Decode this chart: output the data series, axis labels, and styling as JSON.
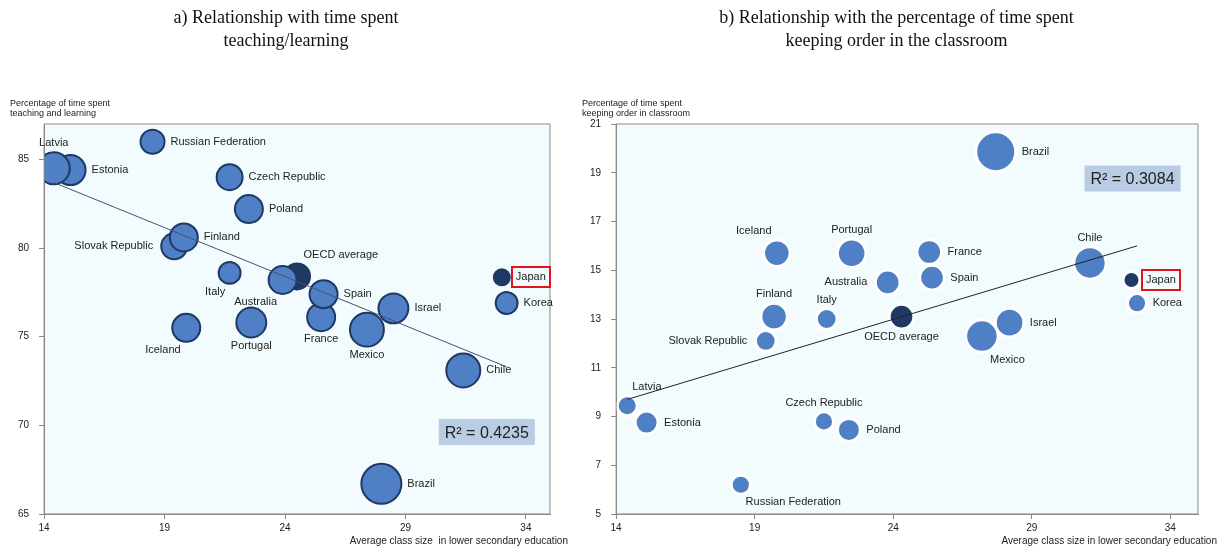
{
  "chart_data": [
    {
      "type": "bubble",
      "title": "a) Relationship with time spent teaching/learning",
      "xlabel": "Average class size  in lower secondary education",
      "ylabel": "Percentage of time spent\nteaching and learning",
      "xlim": [
        14,
        35
      ],
      "ylim": [
        65,
        87
      ],
      "xticks": [
        14,
        19,
        24,
        29,
        34
      ],
      "yticks": [
        65,
        70,
        75,
        80,
        85
      ],
      "grid": false,
      "annotations": [
        "R² = 0.4235"
      ],
      "series": [
        {
          "name": "Latvia",
          "color": "#4f7fc4",
          "x": [
            14.4
          ],
          "values": [
            84.5
          ],
          "sizes": [
            0.64
          ]
        },
        {
          "name": "Estonia",
          "color": "#4f7fc4",
          "x": [
            15.1
          ],
          "values": [
            84.4
          ],
          "sizes": [
            0.56
          ]
        },
        {
          "name": "Russian Federation",
          "color": "#4f7fc4",
          "x": [
            18.5
          ],
          "values": [
            86.0
          ],
          "sizes": [
            0.36
          ]
        },
        {
          "name": "Czech Republic",
          "color": "#4f7fc4",
          "x": [
            21.7
          ],
          "values": [
            84.0
          ],
          "sizes": [
            0.42
          ]
        },
        {
          "name": "Poland",
          "color": "#4f7fc4",
          "x": [
            22.5
          ],
          "values": [
            82.2
          ],
          "sizes": [
            0.49
          ]
        },
        {
          "name": "Finland",
          "color": "#4f7fc4",
          "x": [
            19.8
          ],
          "values": [
            80.6
          ],
          "sizes": [
            0.49
          ]
        },
        {
          "name": "Slovak Republic",
          "color": "#4f7fc4",
          "x": [
            19.4
          ],
          "values": [
            80.1
          ],
          "sizes": [
            0.42
          ]
        },
        {
          "name": "Italy",
          "color": "#4f7fc4",
          "x": [
            21.7
          ],
          "values": [
            78.6
          ],
          "sizes": [
            0.3
          ]
        },
        {
          "name": "Australia",
          "color": "#4f7fc4",
          "x": [
            23.9
          ],
          "values": [
            78.2
          ],
          "sizes": [
            0.49
          ]
        },
        {
          "name": "Iceland",
          "color": "#4f7fc4",
          "x": [
            19.9
          ],
          "values": [
            75.5
          ],
          "sizes": [
            0.49
          ]
        },
        {
          "name": "Portugal",
          "color": "#4f7fc4",
          "x": [
            22.6
          ],
          "values": [
            75.8
          ],
          "sizes": [
            0.56
          ]
        },
        {
          "name": "OECD average",
          "color": "#1f3864",
          "x": [
            24.5
          ],
          "values": [
            78.4
          ],
          "sizes": [
            0.42
          ]
        },
        {
          "name": "Spain",
          "color": "#4f7fc4",
          "x": [
            25.6
          ],
          "values": [
            77.4
          ],
          "sizes": [
            0.49
          ]
        },
        {
          "name": "France",
          "color": "#4f7fc4",
          "x": [
            25.5
          ],
          "values": [
            76.1
          ],
          "sizes": [
            0.49
          ]
        },
        {
          "name": "Israel",
          "color": "#4f7fc4",
          "x": [
            28.5
          ],
          "values": [
            76.6
          ],
          "sizes": [
            0.56
          ]
        },
        {
          "name": "Mexico",
          "color": "#4f7fc4",
          "x": [
            27.4
          ],
          "values": [
            75.4
          ],
          "sizes": [
            0.72
          ]
        },
        {
          "name": "Japan",
          "color": "#1f3864",
          "x": [
            33.0
          ],
          "values": [
            78.35
          ],
          "sizes": [
            0.16
          ]
        },
        {
          "name": "Korea",
          "color": "#4f7fc4",
          "x": [
            33.2
          ],
          "values": [
            76.9
          ],
          "sizes": [
            0.3
          ]
        },
        {
          "name": "Chile",
          "color": "#4f7fc4",
          "x": [
            31.4
          ],
          "values": [
            73.1
          ],
          "sizes": [
            0.72
          ]
        },
        {
          "name": "Brazil",
          "color": "#4f7fc4",
          "x": [
            28.0
          ],
          "values": [
            66.7
          ],
          "sizes": [
            1
          ]
        },
        {
          "type": "line",
          "color": "#44546a",
          "x": [
            14.4,
            33.2
          ],
          "values": [
            83.7,
            73.3
          ]
        }
      ]
    },
    {
      "type": "bubble",
      "title": "b) Relationship with the percentage of time spent keeping order in the classroom",
      "xlabel": "Average class size in lower secondary education",
      "ylabel": "Percentage of time spent\nkeeping order in classroom",
      "xlim": [
        14,
        35
      ],
      "ylim": [
        5,
        21
      ],
      "xticks": [
        14,
        19,
        24,
        29,
        34
      ],
      "yticks": [
        5,
        7,
        9,
        11,
        13,
        15,
        17,
        19,
        21
      ],
      "grid": false,
      "annotations": [
        "R² = 0.3084"
      ],
      "series": [
        {
          "name": "Latvia",
          "color": "#4f7fc4",
          "x": [
            14.4
          ],
          "values": [
            9.44
          ],
          "sizes": [
            0.25
          ]
        },
        {
          "name": "Estonia",
          "color": "#4f7fc4",
          "x": [
            15.1
          ],
          "values": [
            8.75
          ],
          "sizes": [
            0.33
          ]
        },
        {
          "name": "Russian Federation",
          "color": "#4f7fc4",
          "x": [
            18.5
          ],
          "values": [
            6.2
          ],
          "sizes": [
            0.23
          ]
        },
        {
          "name": "Czech Republic",
          "color": "#4f7fc4",
          "x": [
            21.5
          ],
          "values": [
            8.8
          ],
          "sizes": [
            0.23
          ]
        },
        {
          "name": "Poland",
          "color": "#4f7fc4",
          "x": [
            22.4
          ],
          "values": [
            8.45
          ],
          "sizes": [
            0.33
          ]
        },
        {
          "name": "Finland",
          "color": "#4f7fc4",
          "x": [
            19.7
          ],
          "values": [
            13.1
          ],
          "sizes": [
            0.44
          ]
        },
        {
          "name": "Slovak Republic",
          "color": "#4f7fc4",
          "x": [
            19.4
          ],
          "values": [
            12.1
          ],
          "sizes": [
            0.27
          ]
        },
        {
          "name": "Italy",
          "color": "#4f7fc4",
          "x": [
            21.6
          ],
          "values": [
            13.0
          ],
          "sizes": [
            0.27
          ]
        },
        {
          "name": "Australia",
          "color": "#4f7fc4",
          "x": [
            23.8
          ],
          "values": [
            14.5
          ],
          "sizes": [
            0.38
          ]
        },
        {
          "name": "Iceland",
          "color": "#4f7fc4",
          "x": [
            19.8
          ],
          "values": [
            15.7
          ],
          "sizes": [
            0.44
          ]
        },
        {
          "name": "Portugal",
          "color": "#4f7fc4",
          "x": [
            22.5
          ],
          "values": [
            15.7
          ],
          "sizes": [
            0.51
          ]
        },
        {
          "name": "OECD average",
          "color": "#1f3864",
          "x": [
            24.3
          ],
          "values": [
            13.1
          ],
          "sizes": [
            0.38
          ]
        },
        {
          "name": "Spain",
          "color": "#4f7fc4",
          "x": [
            25.4
          ],
          "values": [
            14.7
          ],
          "sizes": [
            0.38
          ]
        },
        {
          "name": "France",
          "color": "#4f7fc4",
          "x": [
            25.3
          ],
          "values": [
            15.75
          ],
          "sizes": [
            0.38
          ]
        },
        {
          "name": "Israel",
          "color": "#4f7fc4",
          "x": [
            28.2
          ],
          "values": [
            12.85
          ],
          "sizes": [
            0.51
          ]
        },
        {
          "name": "Mexico",
          "color": "#4f7fc4",
          "x": [
            27.2
          ],
          "values": [
            12.3
          ],
          "sizes": [
            0.66
          ]
        },
        {
          "name": "Japan",
          "color": "#1f3864",
          "x": [
            32.6
          ],
          "values": [
            14.6
          ],
          "sizes": [
            0.18
          ]
        },
        {
          "name": "Korea",
          "color": "#4f7fc4",
          "x": [
            32.8
          ],
          "values": [
            13.65
          ],
          "sizes": [
            0.23
          ]
        },
        {
          "name": "Chile",
          "color": "#4f7fc4",
          "x": [
            31.1
          ],
          "values": [
            15.3
          ],
          "sizes": [
            0.66
          ]
        },
        {
          "name": "Brazil",
          "color": "#4f7fc4",
          "x": [
            27.7
          ],
          "values": [
            19.86
          ],
          "sizes": [
            1
          ]
        },
        {
          "type": "line",
          "color": "#222222",
          "x": [
            14.4,
            32.8
          ],
          "values": [
            9.7,
            16.0
          ]
        }
      ]
    }
  ]
}
